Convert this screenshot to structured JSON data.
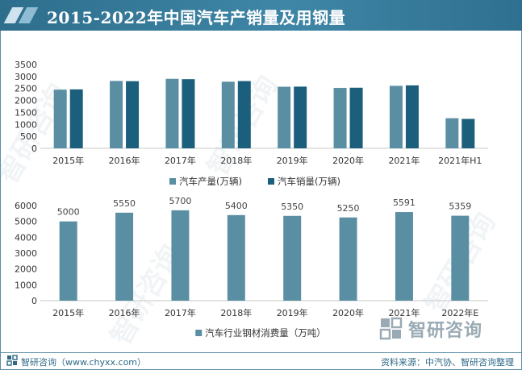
{
  "title": "2015-2022年中国汽车产销量及用钢量",
  "watermark_text": "智研咨询",
  "brand": "智研咨询",
  "footer": {
    "left": "智研咨询（www.chyxx.com）",
    "right": "资料来源：中汽协、智研咨询整理"
  },
  "colors": {
    "title_bg": "#3a7f9f",
    "production": "#5a8fa3",
    "sales": "#1c5f7c",
    "steel": "#5a8fa3"
  },
  "chart_data": [
    {
      "type": "bar",
      "categories": [
        "2015年",
        "2016年",
        "2017年",
        "2018年",
        "2019年",
        "2020年",
        "2021年",
        "2021年H1"
      ],
      "series": [
        {
          "name": "汽车产量(万辆)",
          "values": [
            2450,
            2812,
            2902,
            2781,
            2572,
            2523,
            2608,
            1257
          ]
        },
        {
          "name": "汽车销量(万辆)",
          "values": [
            2460,
            2803,
            2888,
            2808,
            2577,
            2531,
            2628,
            1229
          ]
        }
      ],
      "yticks": [
        0,
        500,
        1000,
        1500,
        2000,
        2500,
        3000,
        3500
      ],
      "ylim": [
        0,
        3500
      ],
      "legend": "bottom"
    },
    {
      "type": "bar",
      "categories": [
        "2015年",
        "2016年",
        "2017年",
        "2018年",
        "2019年",
        "2020年",
        "2021年",
        "2022年E"
      ],
      "series": [
        {
          "name": "汽车行业钢材消费量（万吨）",
          "values": [
            5000,
            5550,
            5700,
            5400,
            5350,
            5250,
            5591,
            5359
          ]
        }
      ],
      "yticks": [
        0,
        1000,
        2000,
        3000,
        4000,
        5000,
        6000
      ],
      "ylim": [
        0,
        6000
      ],
      "legend": "bottom",
      "data_labels": true
    }
  ]
}
